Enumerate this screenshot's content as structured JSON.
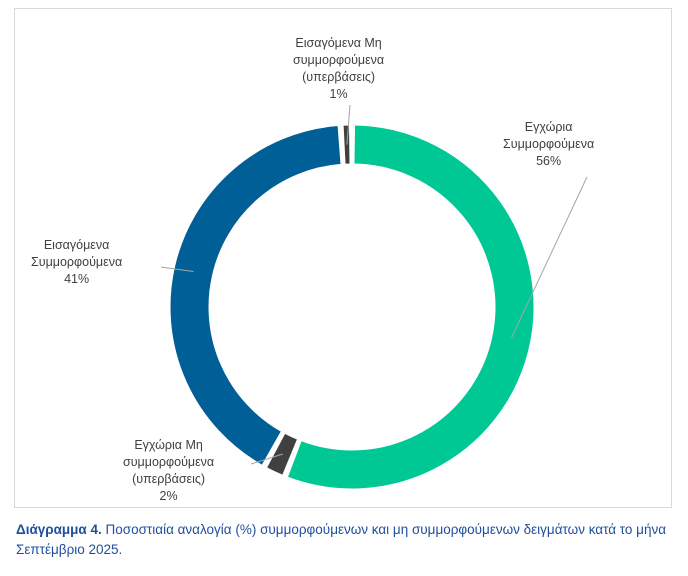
{
  "chart_data": {
    "type": "pie",
    "style": "donut",
    "slices": [
      {
        "name_lines": [
          "Εγχώρια",
          "Συμμορφούμενα"
        ],
        "value": 56,
        "label": "56%",
        "color": "#00c895"
      },
      {
        "name_lines": [
          "Εγχώρια Μη",
          "συμμορφούμενα",
          "(υπερβάσεις)"
        ],
        "value": 2,
        "label": "2%",
        "color": "#404040"
      },
      {
        "name_lines": [
          "Εισαγόμενα",
          "Συμμορφούμενα"
        ],
        "value": 41,
        "label": "41%",
        "color": "#005f96"
      },
      {
        "name_lines": [
          "Εισαγόμενα Μη",
          "συμμορφούμενα",
          "(υπερβάσεις)"
        ],
        "value": 1,
        "label": "1%",
        "color": "#404040"
      }
    ]
  },
  "caption": {
    "label": "Διάγραμμα 4.",
    "text": " Ποσοστιαία αναλογία (%) συμμορφούμενων και μη συμμορφούμενων δειγμάτων κατά το μήνα Σεπτέμβριο 2025."
  }
}
